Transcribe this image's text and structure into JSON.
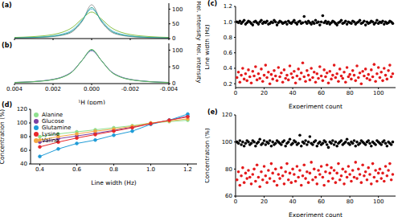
{
  "chart_data": [
    {
      "type": "line",
      "title": "(a)",
      "y_label": "Rel. intensity",
      "tick_labels": "y",
      "x": [
        0.004,
        0.0035,
        0.003,
        0.0025,
        0.002,
        0.0015,
        0.001,
        0.0005,
        0,
        -0.0005,
        -0.001,
        -0.0015,
        -0.002,
        -0.0025,
        -0.003,
        -0.0035,
        -0.004
      ],
      "series": [
        {
          "color": "#a0a0a0",
          "values": [
            1.8,
            2.3,
            3.1,
            4.4,
            6.8,
            11.5,
            23,
            57.5,
            115,
            57.5,
            23,
            11.5,
            6.8,
            4.4,
            3.1,
            2.3,
            1.8
          ]
        },
        {
          "color": "#7ec8e3",
          "values": [
            2.6,
            3.3,
            4.5,
            6.3,
            9.6,
            15.8,
            29.7,
            62.8,
            100,
            62.8,
            29.7,
            15.8,
            9.6,
            6.3,
            4.5,
            3.3,
            2.6
          ]
        },
        {
          "color": "#8bc34a",
          "values": [
            3.9,
            5.0,
            6.7,
            9.3,
            13.8,
            21.9,
            37.8,
            66.9,
            90,
            66.9,
            37.8,
            21.9,
            13.8,
            9.3,
            6.7,
            5.0,
            3.9
          ]
        },
        {
          "color": "#2aa198",
          "values": [
            2.1,
            2.8,
            3.7,
            5.3,
            8.0,
            13.5,
            26.1,
            59.8,
            105,
            59.8,
            26.1,
            13.5,
            8.0,
            5.3,
            3.7,
            2.8,
            2.1
          ]
        }
      ],
      "xlim": [
        0.004,
        -0.004
      ],
      "xticks": [
        0.004,
        0.002,
        {
          "value": 0,
          "label": "0.000"
        },
        -0.002,
        -0.004
      ],
      "ylim": [
        0,
        120
      ],
      "yticks": [
        0,
        50,
        100
      ]
    },
    {
      "type": "line",
      "title": "(b)",
      "x_label": "¹H (ppm)",
      "y_label": "Rel. intensity",
      "x": [
        0.004,
        0.0035,
        0.003,
        0.0025,
        0.002,
        0.0015,
        0.001,
        0.0005,
        0,
        -0.0005,
        -0.001,
        -0.0015,
        -0.002,
        -0.0025,
        -0.003,
        -0.0035,
        -0.004
      ],
      "series": [
        {
          "color": "#2a9d8f",
          "values": [
            3.4,
            4.4,
            5.9,
            8.3,
            12.3,
            20.0,
            36.0,
            69.2,
            100,
            69.2,
            36.0,
            20.0,
            12.3,
            8.3,
            5.9,
            4.4,
            3.4
          ]
        },
        {
          "color": "#8e7cc3",
          "values": [
            3.6,
            4.6,
            6.1,
            8.6,
            12.8,
            20.6,
            36.8,
            69.2,
            98,
            69.2,
            36.8,
            20.6,
            12.8,
            8.6,
            6.1,
            4.6,
            3.6
          ]
        },
        {
          "color": "#5cb85c",
          "values": [
            3.2,
            4.2,
            5.6,
            7.9,
            11.8,
            19.3,
            35.1,
            69.1,
            102,
            69.1,
            35.1,
            19.3,
            11.8,
            7.9,
            5.6,
            4.2,
            3.2
          ]
        }
      ],
      "xlim": [
        0.004,
        -0.004
      ],
      "xticks": [
        0.004,
        0.002,
        {
          "value": 0,
          "label": "0.000"
        },
        -0.002,
        -0.004
      ],
      "ylim": [
        0,
        120
      ],
      "yticks": [
        0,
        50,
        100
      ]
    },
    {
      "type": "scatter",
      "title": "(c)",
      "x_label": "Experiment count",
      "y_label": "Line width (Hz)",
      "marker": "circle",
      "x": [
        1,
        2,
        3,
        4,
        5,
        6,
        7,
        8,
        9,
        10,
        11,
        12,
        13,
        14,
        15,
        16,
        17,
        18,
        19,
        20,
        21,
        22,
        23,
        24,
        25,
        26,
        27,
        28,
        29,
        30,
        31,
        32,
        33,
        34,
        35,
        36,
        37,
        38,
        39,
        40,
        41,
        42,
        43,
        44,
        45,
        46,
        47,
        48,
        49,
        50,
        51,
        52,
        53,
        54,
        55,
        56,
        57,
        58,
        59,
        60,
        61,
        62,
        63,
        64,
        65,
        66,
        67,
        68,
        69,
        70,
        71,
        72,
        73,
        74,
        75,
        76,
        77,
        78,
        79,
        80,
        81,
        82,
        83,
        84,
        85,
        86,
        87,
        88,
        89,
        90,
        91,
        92,
        93,
        94,
        95,
        96,
        97,
        98,
        99,
        100,
        101,
        102,
        103,
        104,
        105,
        106,
        107,
        108,
        109,
        110
      ],
      "series": [
        {
          "color": "#000000",
          "values": [
            1.0,
            0.99,
            1.01,
            0.98,
            1.0,
            1.02,
            0.97,
            0.99,
            1.01,
            1.0,
            0.98,
            0.96,
            1.0,
            1.01,
            0.99,
            0.97,
            1.0,
            1.02,
            0.98,
            1.0,
            0.99,
            1.01,
            0.97,
            0.98,
            1.0,
            0.99,
            1.02,
            1.0,
            0.96,
            0.99,
            1.01,
            1.0,
            0.98,
            0.99,
            1.0,
            0.97,
            1.01,
            0.99,
            0.98,
            1.0,
            1.02,
            0.99,
            0.97,
            1.0,
            1.01,
            0.98,
            0.99,
            1.07,
            1.0,
            0.98,
            1.01,
            0.99,
            0.97,
            1.0,
            0.98,
            1.02,
            0.99,
            1.0,
            0.96,
            1.0,
            1.08,
            0.99,
            1.01,
            0.98,
            1.0,
            0.97,
            0.99,
            1.01,
            1.0,
            0.98,
            0.96,
            0.99,
            1.0,
            1.02,
            0.98,
            0.99,
            1.01,
            0.97,
            1.0,
            0.99,
            0.98,
            1.01,
            1.0,
            0.97,
            0.99,
            1.0,
            1.02,
            0.98,
            0.99,
            1.01,
            0.96,
            1.0,
            0.98,
            0.99,
            1.01,
            1.0,
            0.97,
            0.99,
            1.02,
            0.98,
            1.0,
            0.99,
            1.01,
            0.97,
            1.0,
            0.98,
            0.99,
            1.01,
            1.0,
            0.98
          ]
        },
        {
          "color": "#e41a1c",
          "values": [
            0.28,
            0.35,
            0.22,
            0.31,
            0.4,
            0.26,
            0.33,
            0.24,
            0.38,
            0.29,
            0.21,
            0.36,
            0.3,
            0.42,
            0.25,
            0.33,
            0.27,
            0.39,
            0.23,
            0.31,
            0.44,
            0.28,
            0.35,
            0.2,
            0.32,
            0.26,
            0.37,
            0.3,
            0.24,
            0.41,
            0.29,
            0.34,
            0.22,
            0.38,
            0.27,
            0.31,
            0.25,
            0.43,
            0.33,
            0.28,
            0.36,
            0.21,
            0.3,
            0.39,
            0.26,
            0.34,
            0.47,
            0.29,
            0.23,
            0.37,
            0.31,
            0.25,
            0.4,
            0.28,
            0.35,
            0.22,
            0.33,
            0.27,
            0.42,
            0.3,
            0.24,
            0.38,
            0.29,
            0.34,
            0.21,
            0.36,
            0.26,
            0.31,
            0.44,
            0.28,
            0.33,
            0.23,
            0.39,
            0.3,
            0.27,
            0.35,
            0.22,
            0.41,
            0.29,
            0.32,
            0.26,
            0.37,
            0.31,
            0.24,
            0.43,
            0.28,
            0.34,
            0.2,
            0.36,
            0.3,
            0.39,
            0.27,
            0.32,
            0.25,
            0.38,
            0.29,
            0.45,
            0.23,
            0.33,
            0.41,
            0.28,
            0.35,
            0.24,
            0.4,
            0.31,
            0.26,
            0.37,
            0.44,
            0.29,
            0.33
          ]
        }
      ],
      "xlim": [
        0,
        112
      ],
      "xticks": [
        0,
        20,
        40,
        60,
        80,
        100
      ],
      "ylim": [
        0.15,
        1.2
      ],
      "yticks": [
        0.2,
        0.4,
        0.6,
        0.8,
        {
          "value": 1,
          "label": "1.0"
        },
        1.2
      ]
    },
    {
      "type": "line",
      "title": "(d)",
      "x_label": "Line width (Hz)",
      "y_label": "Concentration (%)",
      "marker": "circle",
      "legend": "upper left",
      "x": [
        0.4,
        0.5,
        0.6,
        0.7,
        0.8,
        0.9,
        1.0,
        1.1,
        1.2
      ],
      "series": [
        {
          "name": "Glucose",
          "color": "#7b3fa0",
          "values": [
            72,
            77,
            81,
            85,
            89,
            94,
            99,
            104,
            110
          ]
        },
        {
          "name": "Glutamine",
          "color": "#1e9bd7",
          "values": [
            51,
            62,
            70,
            75,
            82,
            88,
            98,
            104,
            113
          ]
        },
        {
          "name": "Alanine",
          "color": "#8ee08e",
          "values": [
            80,
            84,
            87,
            90,
            93,
            96,
            100,
            102,
            104
          ]
        },
        {
          "name": "Valine",
          "color": "#f4a742",
          "values": [
            75,
            80,
            84,
            88,
            91,
            95,
            100,
            103,
            106
          ]
        },
        {
          "name": "Lysine",
          "color": "#e8262a",
          "values": [
            65,
            72,
            78,
            83,
            88,
            93,
            99,
            104,
            109
          ]
        }
      ],
      "xlim": [
        0.35,
        1.25
      ],
      "xticks": [
        0.4,
        0.6,
        0.8,
        {
          "value": 1,
          "label": "1.0"
        },
        1.2
      ],
      "ylim": [
        40,
        120
      ],
      "yticks": [
        40,
        60,
        80,
        100,
        120
      ]
    },
    {
      "type": "scatter",
      "title": "(e)",
      "x_label": "Experiment count",
      "y_label": "Concentration (%)",
      "marker": "circle",
      "x": [
        1,
        2,
        3,
        4,
        5,
        6,
        7,
        8,
        9,
        10,
        11,
        12,
        13,
        14,
        15,
        16,
        17,
        18,
        19,
        20,
        21,
        22,
        23,
        24,
        25,
        26,
        27,
        28,
        29,
        30,
        31,
        32,
        33,
        34,
        35,
        36,
        37,
        38,
        39,
        40,
        41,
        42,
        43,
        44,
        45,
        46,
        47,
        48,
        49,
        50,
        51,
        52,
        53,
        54,
        55,
        56,
        57,
        58,
        59,
        60,
        61,
        62,
        63,
        64,
        65,
        66,
        67,
        68,
        69,
        70,
        71,
        72,
        73,
        74,
        75,
        76,
        77,
        78,
        79,
        80,
        81,
        82,
        83,
        84,
        85,
        86,
        87,
        88,
        89,
        90,
        91,
        92,
        93,
        94,
        95,
        96,
        97,
        98,
        99,
        100,
        101,
        102,
        103,
        104,
        105,
        106,
        107,
        108,
        109,
        110
      ],
      "series": [
        {
          "color": "#000000",
          "values": [
            100,
            99,
            101,
            98,
            100,
            97,
            99,
            101,
            100,
            98,
            99,
            101,
            100,
            97,
            99,
            100,
            102,
            98,
            99,
            101,
            98,
            100,
            99,
            101,
            97,
            100,
            98,
            99,
            101,
            100,
            99,
            98,
            100,
            101,
            97,
            99,
            100,
            102,
            98,
            99,
            101,
            100,
            98,
            99,
            105,
            97,
            100,
            99,
            101,
            98,
            100,
            104,
            99,
            98,
            100,
            101,
            97,
            99,
            100,
            98,
            99,
            101,
            100,
            98,
            96,
            100,
            99,
            101,
            98,
            100,
            97,
            99,
            100,
            101,
            98,
            99,
            100,
            102,
            99,
            98,
            100,
            99,
            101,
            97,
            100,
            98,
            99,
            101,
            100,
            99,
            98,
            100,
            101,
            99,
            97,
            100,
            99,
            98,
            101,
            100,
            99,
            98,
            100,
            101,
            99,
            97,
            100,
            99,
            98,
            100
          ]
        },
        {
          "color": "#e41a1c",
          "values": [
            72,
            78,
            68,
            75,
            81,
            70,
            77,
            73,
            79,
            74,
            69,
            76,
            80,
            71,
            83,
            74,
            67,
            78,
            72,
            82,
            75,
            70,
            79,
            73,
            84,
            77,
            71,
            80,
            68,
            76,
            73,
            81,
            75,
            69,
            78,
            84,
            72,
            77,
            70,
            80,
            76,
            71,
            82,
            74,
            79,
            68,
            75,
            83,
            73,
            78,
            70,
            77,
            85,
            72,
            80,
            74,
            69,
            79,
            76,
            82,
            74,
            68,
            78,
            83,
            71,
            77,
            81,
            73,
            79,
            70,
            77,
            84,
            72,
            75,
            80,
            69,
            78,
            74,
            82,
            76,
            71,
            79,
            74,
            85,
            73,
            80,
            76,
            70,
            83,
            75,
            78,
            72,
            81,
            76,
            69,
            84,
            74,
            79,
            71,
            77,
            80,
            73,
            77,
            71,
            82,
            75,
            79,
            84,
            72,
            76
          ]
        }
      ],
      "xlim": [
        0,
        112
      ],
      "xticks": [
        0,
        20,
        40,
        60,
        80,
        100
      ],
      "ylim": [
        60,
        120
      ],
      "yticks": [
        60,
        80,
        100,
        120
      ]
    }
  ]
}
